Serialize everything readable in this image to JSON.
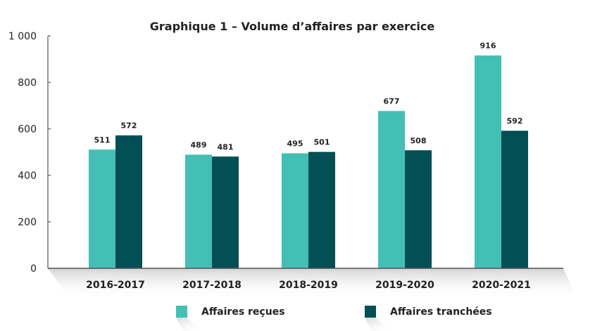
{
  "chart_data": {
    "type": "bar",
    "title": "Graphique 1 – Volume d’affaires par exercice",
    "xlabel": "",
    "ylabel": "",
    "ylim": [
      0,
      1000
    ],
    "yticks": [
      "0",
      "200",
      "400",
      "600",
      "800",
      "1 000"
    ],
    "ytick_values": [
      0,
      200,
      400,
      600,
      800,
      1000
    ],
    "grid": false,
    "legend_position": "bottom",
    "categories": [
      "2016-2017",
      "2017-2018",
      "2018-2019",
      "2019-2020",
      "2020-2021"
    ],
    "series": [
      {
        "name": "Affaires reçues",
        "color": "#44bfb5",
        "values": [
          511,
          489,
          495,
          677,
          916
        ]
      },
      {
        "name": "Affaires tranchées",
        "color": "#024f55",
        "values": [
          572,
          481,
          501,
          508,
          592
        ]
      }
    ]
  }
}
